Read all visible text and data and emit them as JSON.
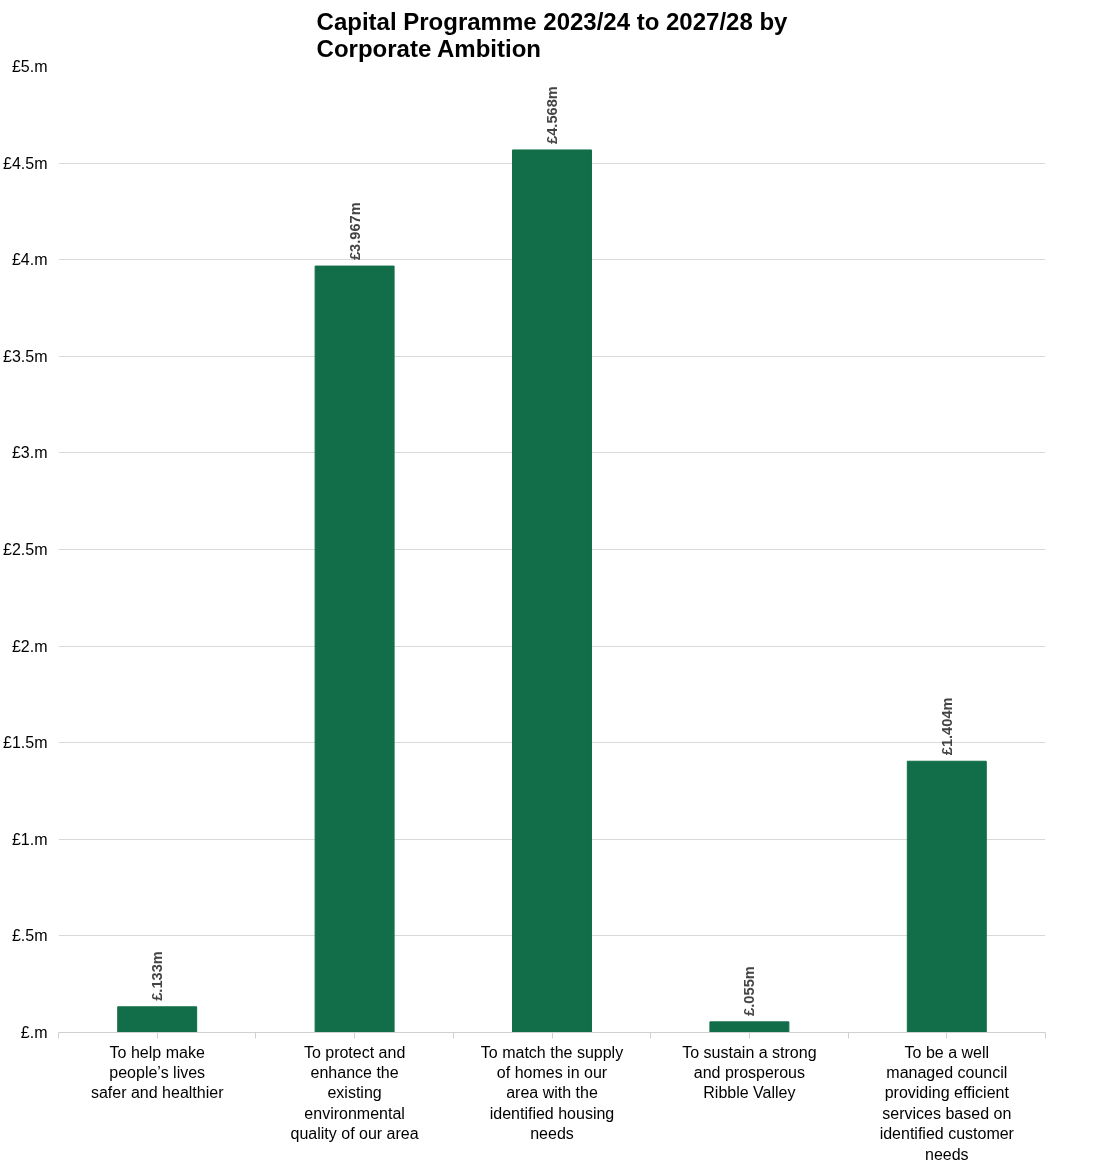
{
  "chart_data": {
    "type": "bar",
    "title": "Capital Programme 2023/24 to 2027/28 by Corporate Ambition",
    "categories": [
      "To help make people’s lives safer and healthier",
      "To protect and enhance the existing environmental quality of our area",
      "To match the supply of homes in our area with the identified housing needs",
      "To sustain a strong and prosperous Ribble Valley",
      "To be a well managed council providing efficient services based on identified customer needs"
    ],
    "values": [
      0.133,
      3.967,
      4.568,
      0.055,
      1.404
    ],
    "color": "#126e48",
    "value_labels": [
      "£.133m",
      "£3.967m",
      "£4.568m",
      "£.055m",
      "£1.404m"
    ],
    "ylim": [
      0,
      5
    ],
    "yticks": [
      {
        "value": 0,
        "label": "£.m"
      },
      {
        "value": 0.5,
        "label": "£.5m"
      },
      {
        "value": 1,
        "label": "£1.m"
      },
      {
        "value": 1.5,
        "label": "£1.5m"
      },
      {
        "value": 2,
        "label": "£2.m"
      },
      {
        "value": 2.5,
        "label": "£2.5m"
      },
      {
        "value": 3,
        "label": "£3.m"
      },
      {
        "value": 3.5,
        "label": "£3.5m"
      },
      {
        "value": 4,
        "label": "£4.m"
      },
      {
        "value": 4.5,
        "label": "£4.5m"
      },
      {
        "value": 5,
        "label": "£5.m"
      }
    ],
    "grid": "y"
  }
}
